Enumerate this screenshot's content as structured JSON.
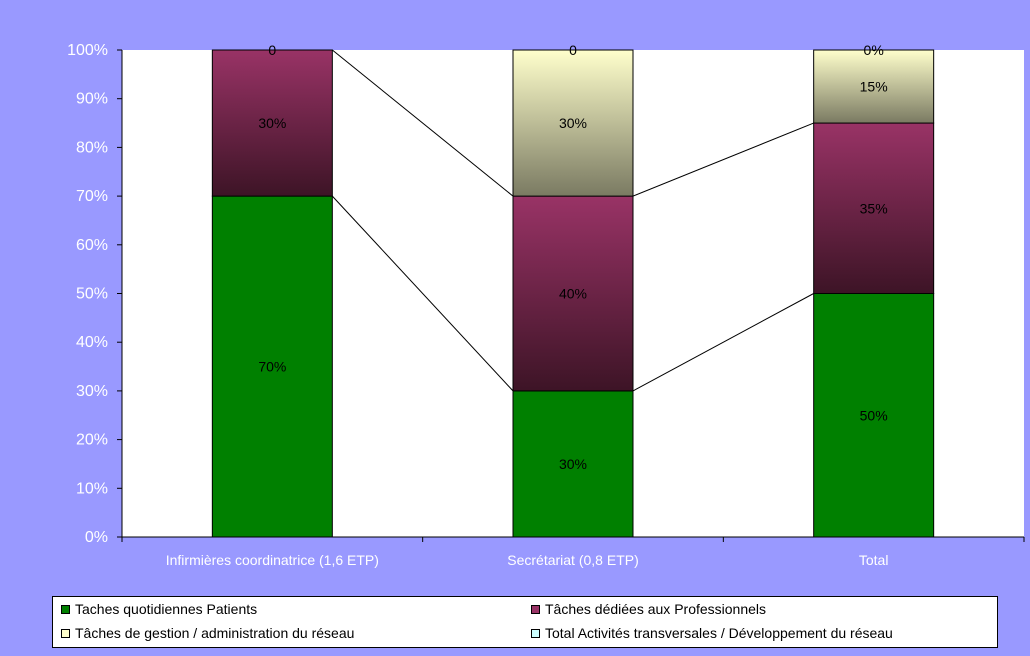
{
  "chart_data": {
    "type": "bar",
    "stacked": true,
    "percent_stacked": true,
    "categories": [
      "Infirmières coordinatrice (1,6 ETP)",
      "Secrétariat (0,8 ETP)",
      "Total"
    ],
    "series": [
      {
        "name": "Taches quotidiennes Patients",
        "values": [
          70,
          30,
          50
        ],
        "labels": [
          "70%",
          "30%",
          "50%"
        ],
        "color": "#008000"
      },
      {
        "name": "Tâches dédiées aux Professionnels",
        "values": [
          30,
          40,
          35
        ],
        "labels": [
          "30%",
          "40%",
          "35%"
        ],
        "color": "#993366"
      },
      {
        "name": "Tâches de gestion / administration du réseau",
        "values": [
          0,
          30,
          15
        ],
        "labels": [
          "0",
          "30%",
          "15%"
        ],
        "color": "#ffffcc"
      },
      {
        "name": "Total Activités transversales / Développement du réseau",
        "values": [
          0,
          0,
          0
        ],
        "labels": [
          "",
          "0",
          "0%"
        ],
        "color": "#ccffff"
      }
    ],
    "y_ticks": [
      "0%",
      "10%",
      "20%",
      "30%",
      "40%",
      "50%",
      "60%",
      "70%",
      "80%",
      "90%",
      "100%"
    ],
    "ylim": [
      0,
      100
    ],
    "series_lines": true,
    "grid": false,
    "legend_position": "bottom",
    "colors": {
      "background": "#9999ff",
      "plot_area": "#ffffff",
      "axis_text": "#ffffff"
    }
  }
}
